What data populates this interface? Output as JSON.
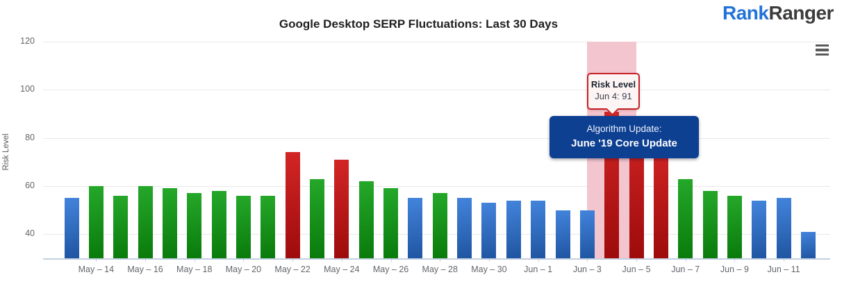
{
  "logo": {
    "part1": "Rank",
    "part2": "Ranger"
  },
  "header": {
    "menu_icon": "hamburger-icon"
  },
  "chart_data": {
    "type": "bar",
    "title": "Google Desktop SERP Fluctuations: Last 30 Days",
    "ylabel": "Risk Level",
    "ylim": [
      30,
      120
    ],
    "yticks": [
      40,
      60,
      80,
      100,
      120
    ],
    "grid": "horizontal",
    "categories": [
      "May 13",
      "May 14",
      "May 15",
      "May 16",
      "May 17",
      "May 18",
      "May 19",
      "May 20",
      "May 21",
      "May 22",
      "May 23",
      "May 24",
      "May 25",
      "May 26",
      "May 27",
      "May 28",
      "May 29",
      "May 30",
      "May 31",
      "Jun 1",
      "Jun 2",
      "Jun 3",
      "Jun 4",
      "Jun 5",
      "Jun 6",
      "Jun 7",
      "Jun 8",
      "Jun 9",
      "Jun 10",
      "Jun 11",
      "Jun 12"
    ],
    "values": [
      55,
      60,
      56,
      60,
      59,
      57,
      58,
      56,
      56,
      74,
      63,
      71,
      62,
      59,
      55,
      57,
      55,
      53,
      54,
      54,
      50,
      50,
      91,
      88,
      78,
      63,
      58,
      56,
      54,
      55,
      41
    ],
    "colors": [
      "blue",
      "green",
      "green",
      "green",
      "green",
      "green",
      "green",
      "green",
      "green",
      "red",
      "green",
      "red",
      "green",
      "green",
      "blue",
      "green",
      "blue",
      "blue",
      "blue",
      "blue",
      "blue",
      "blue",
      "red",
      "red",
      "red",
      "green",
      "green",
      "green",
      "blue",
      "blue",
      "blue"
    ],
    "palette": {
      "blue": "#2e6cc0",
      "green": "#149118",
      "red": "#b81414",
      "band": "#f3c5ce",
      "grid": "#e8e8e8",
      "axis": "#c3cfdf"
    },
    "x_tick_labels": [
      "May – 14",
      "May – 16",
      "May – 18",
      "May – 20",
      "May – 22",
      "May – 24",
      "May – 26",
      "May – 28",
      "May – 30",
      "Jun – 1",
      "Jun – 3",
      "Jun – 5",
      "Jun – 7",
      "Jun – 9",
      "Jun – 11"
    ],
    "highlight_band": {
      "from": "Jun 3",
      "to": "Jun 5"
    },
    "tooltip": {
      "title": "Risk Level",
      "value_line": "Jun 4: 91",
      "points_to": "Jun 4"
    },
    "annotation": {
      "line1": "Algorithm Update:",
      "line2": "June '19 Core Update"
    }
  }
}
